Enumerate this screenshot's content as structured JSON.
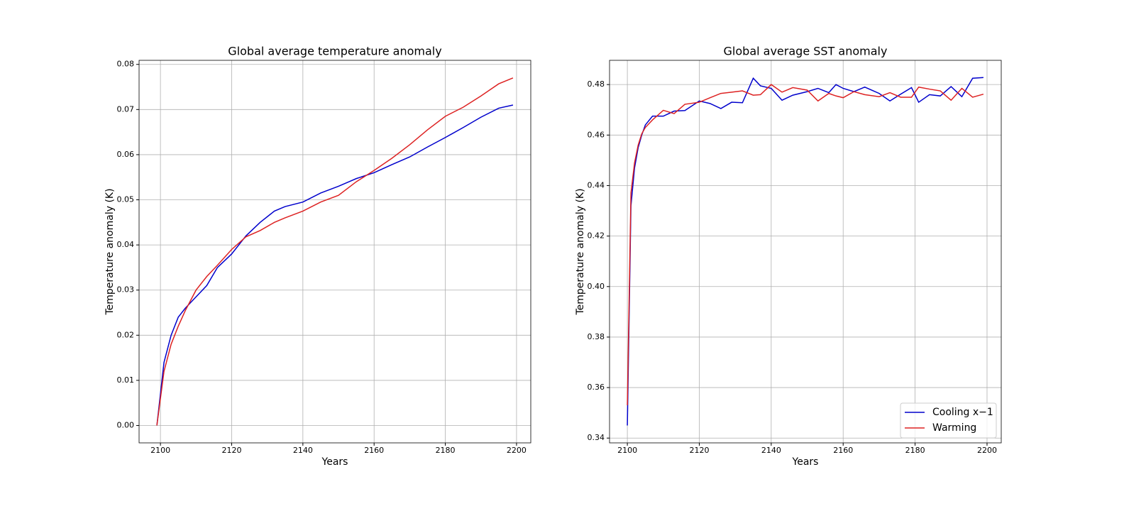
{
  "chart_data": [
    {
      "type": "line",
      "title": "Global average temperature anomaly",
      "xlabel": "Years",
      "ylabel": "Temperature anomaly (K)",
      "x": [
        2099,
        2101,
        2103,
        2105,
        2107,
        2110,
        2113,
        2116,
        2120,
        2124,
        2128,
        2132,
        2135,
        2140,
        2145,
        2150,
        2155,
        2160,
        2165,
        2170,
        2175,
        2180,
        2185,
        2190,
        2195,
        2199
      ],
      "series": [
        {
          "name": "Cooling x−1",
          "color": "#0000cc",
          "values": [
            0,
            0.014,
            0.02,
            0.024,
            0.026,
            0.0285,
            0.031,
            0.035,
            0.038,
            0.042,
            0.045,
            0.0475,
            0.0485,
            0.0495,
            0.0515,
            0.053,
            0.0547,
            0.056,
            0.0578,
            0.0595,
            0.0617,
            0.0638,
            0.066,
            0.0683,
            0.0703,
            0.071
          ]
        },
        {
          "name": "Warming",
          "color": "#dd2222",
          "values": [
            0,
            0.012,
            0.018,
            0.022,
            0.0255,
            0.03,
            0.033,
            0.0355,
            0.039,
            0.0418,
            0.0432,
            0.045,
            0.046,
            0.0475,
            0.0495,
            0.051,
            0.054,
            0.0565,
            0.0592,
            0.0622,
            0.0655,
            0.0685,
            0.0705,
            0.073,
            0.0757,
            0.077
          ]
        }
      ],
      "xlim": [
        2094,
        2204
      ],
      "xticks": [
        2100,
        2120,
        2140,
        2160,
        2180,
        2200
      ],
      "ylim": [
        -0.00385,
        0.0809
      ],
      "yticks": [
        {
          "value": 0,
          "label": "0.00"
        },
        0.01,
        0.02,
        0.03,
        0.04,
        0.05,
        0.06,
        0.07,
        0.08
      ],
      "grid": true
    },
    {
      "type": "line",
      "title": "Global average SST anomaly",
      "xlabel": "Years",
      "ylabel": "Temperature anomaly (K)",
      "x": [
        2100,
        2101,
        2102,
        2103,
        2104,
        2105,
        2107,
        2110,
        2113,
        2116,
        2120,
        2123,
        2126,
        2129,
        2132,
        2135,
        2137,
        2140,
        2143,
        2146,
        2150,
        2153,
        2156,
        2158,
        2160,
        2163,
        2166,
        2170,
        2173,
        2176,
        2179,
        2181,
        2184,
        2187,
        2190,
        2193,
        2196,
        2199
      ],
      "series": [
        {
          "name": "Cooling x−1",
          "color": "#0000cc",
          "values": [
            0.345,
            0.432,
            0.447,
            0.455,
            0.46,
            0.464,
            0.4675,
            0.4675,
            0.4695,
            0.4697,
            0.4735,
            0.4725,
            0.4705,
            0.473,
            0.4728,
            0.4825,
            0.4795,
            0.4785,
            0.4738,
            0.4758,
            0.4772,
            0.4785,
            0.4768,
            0.48,
            0.4785,
            0.4772,
            0.479,
            0.4765,
            0.4735,
            0.4762,
            0.4788,
            0.473,
            0.476,
            0.4755,
            0.4792,
            0.4752,
            0.4825,
            0.4828
          ]
        },
        {
          "name": "Warming",
          "color": "#dd2222",
          "values": [
            0.353,
            0.437,
            0.449,
            0.456,
            0.4605,
            0.463,
            0.466,
            0.4698,
            0.4685,
            0.4722,
            0.473,
            0.4748,
            0.4765,
            0.477,
            0.4775,
            0.4758,
            0.476,
            0.48,
            0.477,
            0.4788,
            0.4778,
            0.4735,
            0.4765,
            0.4755,
            0.4748,
            0.4772,
            0.476,
            0.4752,
            0.4768,
            0.475,
            0.475,
            0.479,
            0.4782,
            0.4775,
            0.4738,
            0.4785,
            0.475,
            0.4762
          ]
        }
      ],
      "xlim": [
        2095.05,
        2203.95
      ],
      "xticks": [
        2100,
        2120,
        2140,
        2160,
        2180,
        2200
      ],
      "ylim": [
        0.3381,
        0.4896
      ],
      "yticks": [
        0.34,
        0.36,
        0.38,
        {
          "value": 0.4,
          "label": "0.40"
        },
        0.42,
        0.44,
        0.46,
        0.48
      ],
      "grid": true,
      "legend": "lower right"
    }
  ]
}
